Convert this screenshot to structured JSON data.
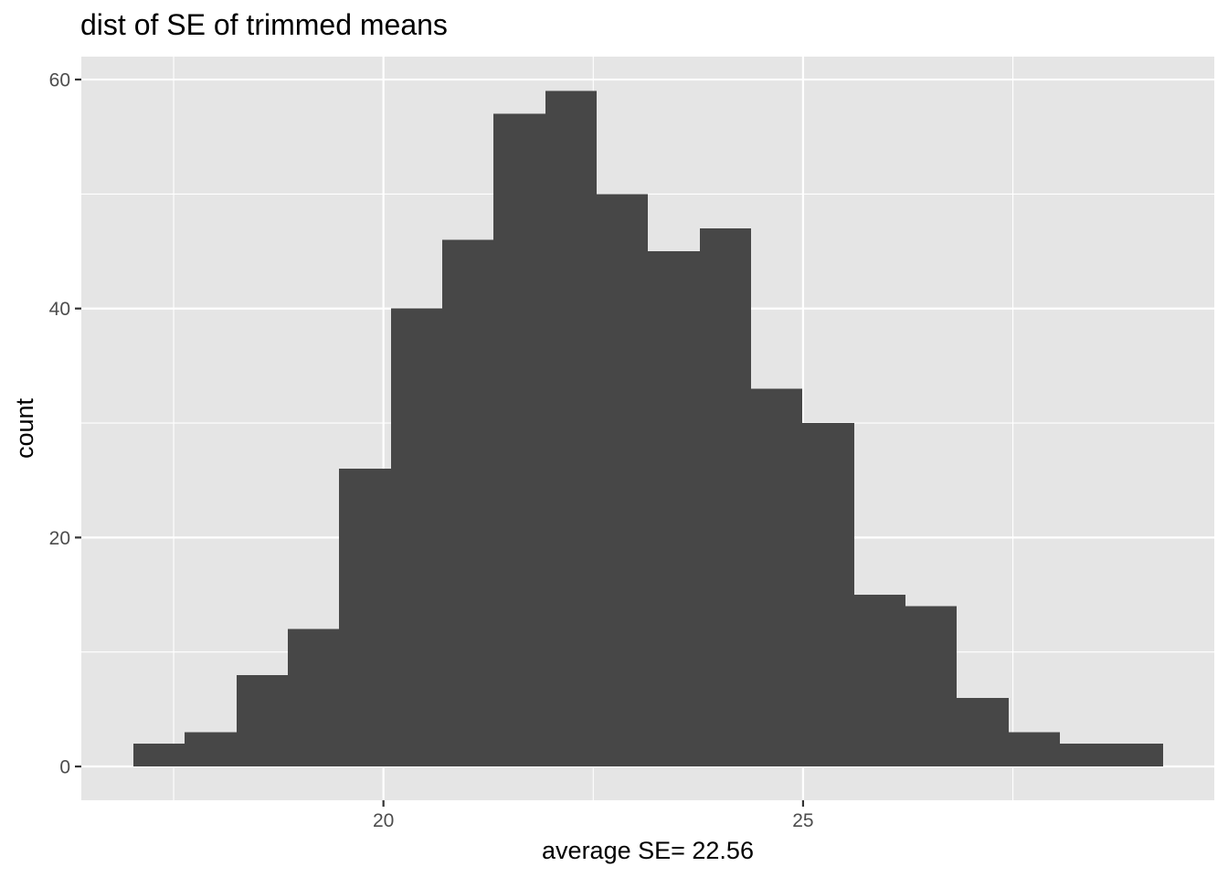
{
  "chart_data": {
    "type": "bar",
    "subtype": "histogram",
    "title": "dist of SE of trimmed means",
    "xlabel": "average SE= 22.56",
    "ylabel": "count",
    "bin_width": 0.613,
    "bins": [
      {
        "start": 17.02,
        "end": 17.63,
        "count": 2
      },
      {
        "start": 17.63,
        "end": 18.25,
        "count": 3
      },
      {
        "start": 18.25,
        "end": 18.86,
        "count": 8
      },
      {
        "start": 18.86,
        "end": 19.47,
        "count": 12
      },
      {
        "start": 19.47,
        "end": 20.09,
        "count": 26
      },
      {
        "start": 20.09,
        "end": 20.7,
        "count": 40
      },
      {
        "start": 20.7,
        "end": 21.31,
        "count": 46
      },
      {
        "start": 21.31,
        "end": 21.93,
        "count": 57
      },
      {
        "start": 21.93,
        "end": 22.54,
        "count": 59
      },
      {
        "start": 22.54,
        "end": 23.15,
        "count": 50
      },
      {
        "start": 23.15,
        "end": 23.77,
        "count": 45
      },
      {
        "start": 23.77,
        "end": 24.38,
        "count": 47
      },
      {
        "start": 24.38,
        "end": 24.99,
        "count": 33
      },
      {
        "start": 24.99,
        "end": 25.61,
        "count": 30
      },
      {
        "start": 25.61,
        "end": 26.22,
        "count": 15
      },
      {
        "start": 26.22,
        "end": 26.83,
        "count": 14
      },
      {
        "start": 26.83,
        "end": 27.45,
        "count": 6
      },
      {
        "start": 27.45,
        "end": 28.06,
        "count": 3
      },
      {
        "start": 28.06,
        "end": 28.67,
        "count": 2
      },
      {
        "start": 28.67,
        "end": 29.29,
        "count": 2
      }
    ],
    "xlim": [
      16.4,
      29.9
    ],
    "ylim": [
      -2.95,
      62.0
    ],
    "x_ticks": [
      20,
      25
    ],
    "x_minor_ticks": [
      17.5,
      22.5,
      27.5
    ],
    "y_ticks": [
      0,
      20,
      40,
      60
    ],
    "y_minor_ticks": [
      10,
      30,
      50
    ],
    "grid": true,
    "legend": "none",
    "colors": {
      "bar_fill": "#474747",
      "panel_background": "#e5e5e5",
      "grid_line": "#ffffff",
      "tick_label": "#4d4d4d",
      "tick_mark": "#333333",
      "text": "#000000"
    }
  }
}
